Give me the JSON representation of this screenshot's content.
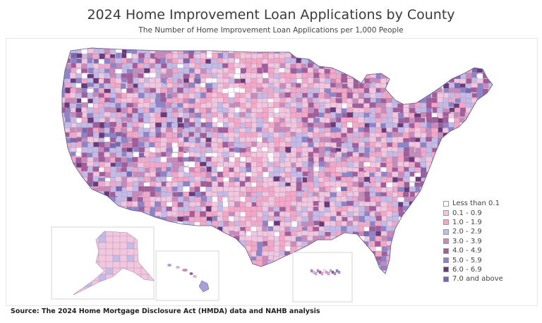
{
  "title": "2024 Home Improvement Loan Applications by County",
  "subtitle": "The Number of Home Improvement Loan Applications per 1,000 People",
  "source": "Source: The 2024 Home Mortgage Disclosure Act (HMDA) data and NAHB analysis",
  "legend": {
    "items": [
      {
        "label": "Less than 0.1",
        "color": "#ffffff"
      },
      {
        "label": "0.1 - 0.9",
        "color": "#f2c6dc"
      },
      {
        "label": "1.0 - 1.9",
        "color": "#f4a6c4"
      },
      {
        "label": "2.0 - 2.9",
        "color": "#c3bbe6"
      },
      {
        "label": "3.0 - 3.9",
        "color": "#c88ab8"
      },
      {
        "label": "4.0 - 4.9",
        "color": "#a35c9a"
      },
      {
        "label": "5.0 - 5.9",
        "color": "#8c84c6"
      },
      {
        "label": "6.0 - 6.9",
        "color": "#6a3b78"
      },
      {
        "label": "7.0 and above",
        "color": "#7a67ad"
      }
    ]
  },
  "map": {
    "regions": [
      "contiguous-us",
      "alaska",
      "hawaii",
      "puerto-rico"
    ]
  }
}
